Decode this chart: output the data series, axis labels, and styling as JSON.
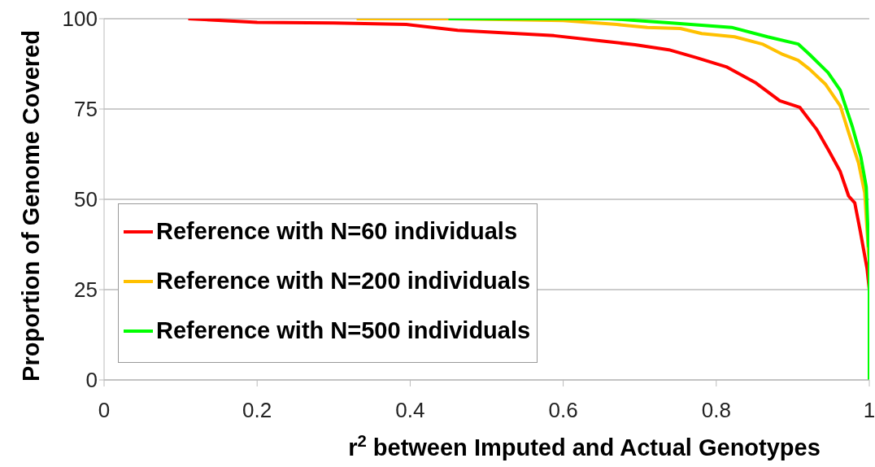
{
  "chart_data": {
    "type": "line",
    "xlabel": "r$^{2}$ between Imputed and Actual Genotypes",
    "ylabel": "Proportion of Genome Covered",
    "xlim": [
      0,
      1
    ],
    "xticks": [
      0,
      0.2,
      0.4,
      0.6,
      0.8,
      1
    ],
    "ylim": [
      0,
      100
    ],
    "yticks": [
      0,
      25,
      50,
      75,
      100
    ],
    "grid": "y",
    "legend": "bottom left",
    "marker": "none",
    "line_style": "solid",
    "series": [
      {
        "name": "Reference with N=60 individuals",
        "color": "#ff0000",
        "x": [
          0.11,
          0.2,
          0.3,
          0.395,
          0.462,
          0.588,
          0.647,
          0.694,
          0.738,
          0.774,
          0.813,
          0.852,
          0.883,
          0.909,
          0.931,
          0.947,
          0.962,
          0.973,
          0.981,
          0.988,
          0.997,
          1.0
        ],
        "values": [
          100,
          99,
          98.8,
          98.4,
          96.8,
          95.3,
          93.9,
          92.8,
          91.4,
          89.2,
          86.7,
          82.2,
          77.3,
          75.5,
          69.4,
          63.5,
          57.7,
          50.9,
          49,
          41.4,
          30.9,
          25
        ]
      },
      {
        "name": "Reference with N=200 individuals",
        "color": "#ffc000",
        "x": [
          0.33,
          0.45,
          0.6,
          0.67,
          0.71,
          0.753,
          0.781,
          0.824,
          0.86,
          0.887,
          0.907,
          0.922,
          0.943,
          0.962,
          0.973,
          0.986,
          0.994,
          0.999,
          1.0
        ],
        "values": [
          100,
          100,
          99.5,
          98.4,
          97.6,
          97.3,
          95.9,
          95,
          93,
          90.1,
          88.5,
          86,
          81.8,
          75.9,
          68.5,
          60,
          51.8,
          35,
          33
        ]
      },
      {
        "name": "Reference with N=500 individuals",
        "color": "#00ff00",
        "x": [
          0.45,
          0.66,
          0.738,
          0.82,
          0.867,
          0.907,
          0.922,
          0.946,
          0.962,
          0.978,
          0.989,
          0.996,
          0.999,
          1.0,
          1.0
        ],
        "values": [
          100,
          100,
          98.9,
          97.6,
          95,
          93,
          90.1,
          85.1,
          80.2,
          70,
          61.7,
          53.4,
          37,
          37,
          0
        ]
      }
    ]
  }
}
